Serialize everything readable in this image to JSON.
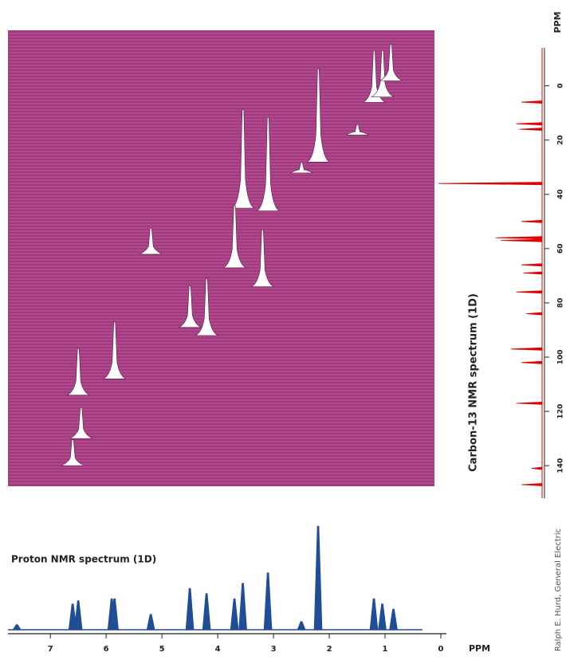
{
  "chart_data": [
    {
      "type": "stacked",
      "color": "#a4397f",
      "x": [
        2.2,
        1.2,
        1.05,
        0.9,
        3.55,
        3.1,
        3.7,
        3.2,
        4.5,
        4.2,
        5.2,
        5.85,
        6.5,
        6.45,
        6.6,
        2.5,
        1.5
      ],
      "y": [
        28,
        6,
        4,
        -2,
        45,
        46,
        67,
        74,
        89,
        92,
        62,
        108,
        114,
        130,
        140,
        32,
        18
      ],
      "values": [
        90,
        50,
        45,
        35,
        95,
        90,
        60,
        55,
        40,
        55,
        25,
        55,
        45,
        30,
        25,
        10,
        10
      ],
      "xlim": [
        7.76,
        0.12
      ],
      "ylim": [
        -20.6,
        147.6
      ]
    },
    {
      "type": "spectrum",
      "orientation": "horizontal",
      "title": "Carbon-13 NMR spectrum (1D)",
      "axis_label": "PPM",
      "color": "#e00000",
      "x": [
        6,
        14,
        16,
        36,
        50,
        56,
        57,
        66,
        69,
        76,
        84,
        97,
        102,
        117,
        141,
        147
      ],
      "values": [
        20,
        25,
        22,
        100,
        20,
        45,
        40,
        20,
        18,
        25,
        15,
        30,
        20,
        25,
        10,
        20
      ],
      "ylim": [
        -14,
        152
      ],
      "yticks": [
        0,
        20,
        40,
        60,
        80,
        100,
        120,
        140
      ]
    },
    {
      "type": "spectrum",
      "orientation": "vertical",
      "title": "Proton NMR spectrum (1D)",
      "axis_label": "PPM",
      "color": "#1f4e96",
      "x": [
        7.6,
        6.6,
        6.5,
        5.9,
        5.85,
        5.2,
        4.5,
        4.2,
        3.7,
        3.55,
        3.1,
        2.5,
        2.2,
        1.2,
        1.05,
        0.85
      ],
      "values": [
        5,
        25,
        28,
        30,
        30,
        15,
        40,
        35,
        30,
        45,
        55,
        8,
        100,
        30,
        25,
        20
      ],
      "xlim": [
        7.76,
        -0.1
      ],
      "xticks": [
        7,
        6,
        5,
        4,
        3,
        2,
        1,
        0
      ]
    }
  ],
  "credit": "Ralph E. Hurd, General Electric"
}
